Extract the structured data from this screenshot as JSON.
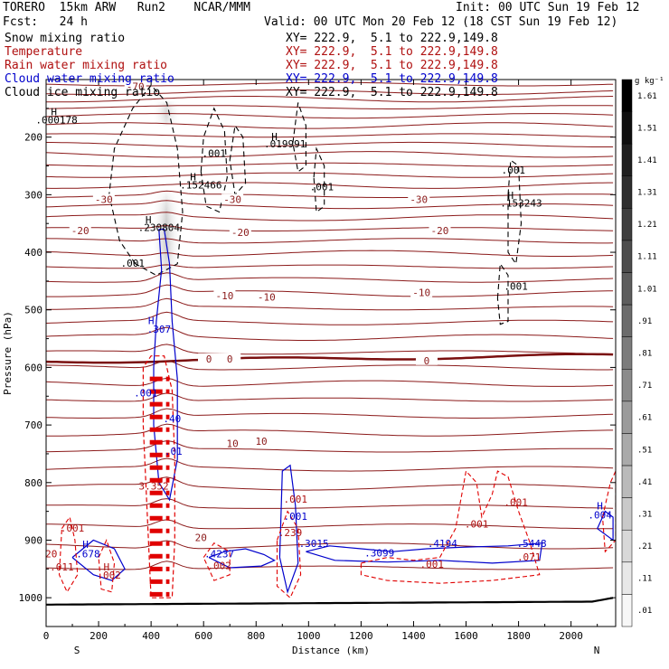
{
  "header": {
    "model": "TORERO  15km ARW   Run2    NCAR/MMM",
    "init": "Init: 00 UTC Sun 19 Feb 12",
    "fcst": "Fcst:   24 h",
    "valid": "Valid: 00 UTC Mon 20 Feb 12 (18 CST Sun 19 Feb 12)"
  },
  "legend": [
    {
      "label": "Snow mixing ratio",
      "xy": "XY= 222.9,  5.1 to 222.9,149.8",
      "color": "#000000"
    },
    {
      "label": "Temperature",
      "xy": "XY= 222.9,  5.1 to 222.9,149.8",
      "color": "#b01010"
    },
    {
      "label": "Rain water mixing ratio",
      "xy": "XY= 222.9,  5.1 to 222.9,149.8",
      "color": "#b01010"
    },
    {
      "label": "Cloud water mixing ratio",
      "xy": "XY= 222.9,  5.1 to 222.9,149.8",
      "color": "#0000cc"
    },
    {
      "label": "Cloud ice mixing ratio",
      "xy": "XY= 222.9,  5.1 to 222.9,149.8",
      "color": "#000000"
    }
  ],
  "chart_data": {
    "type": "cross-section",
    "xlabel": "Distance (km)",
    "ylabel": "Pressure (hPa)",
    "xlim": [
      0,
      2170
    ],
    "ylim": [
      1050,
      100
    ],
    "x_ticks": [
      "0",
      "200",
      "400",
      "600",
      "800",
      "1000",
      "1200",
      "1400",
      "1600",
      "1800",
      "2000"
    ],
    "y_ticks": [
      "200",
      "300",
      "400",
      "500",
      "600",
      "700",
      "800",
      "900",
      "1000"
    ],
    "end_labels": {
      "left": "S",
      "right": "N"
    },
    "colorbar": {
      "unit": "g kg⁻¹",
      "levels": [
        "1.61",
        "1.51",
        "1.41",
        "1.31",
        "1.21",
        "1.11",
        "1.01",
        ".91",
        ".81",
        ".71",
        ".61",
        ".51",
        ".41",
        ".31",
        ".21",
        ".11",
        ".01"
      ]
    },
    "temperature_isotherms": [
      {
        "label": "-70",
        "p": 112
      },
      {
        "label": "-30",
        "p": 308
      },
      {
        "label": "-20",
        "p": 362
      },
      {
        "label": "-10",
        "p": 473
      },
      {
        "label": "0",
        "p": 585
      },
      {
        "label": "10",
        "p": 728
      },
      {
        "label": "20",
        "p": 892
      }
    ],
    "contour_labels": [
      {
        "text": "H",
        "x": 30,
        "p": 162,
        "color": "#000000"
      },
      {
        "text": ".000178",
        "x": 40,
        "p": 176,
        "color": "#000000"
      },
      {
        "text": "H",
        "x": 870,
        "p": 205,
        "color": "#000000"
      },
      {
        "text": ".019991",
        "x": 910,
        "p": 218,
        "color": "#000000"
      },
      {
        "text": ".001",
        "x": 640,
        "p": 234,
        "color": "#000000"
      },
      {
        "text": ".001",
        "x": 1780,
        "p": 263,
        "color": "#000000"
      },
      {
        "text": "H",
        "x": 1770,
        "p": 307,
        "color": "#000000"
      },
      {
        "text": ".153243",
        "x": 1810,
        "p": 321,
        "color": "#000000"
      },
      {
        "text": "H",
        "x": 560,
        "p": 275,
        "color": "#000000"
      },
      {
        "text": ".152466",
        "x": 590,
        "p": 289,
        "color": "#000000"
      },
      {
        "text": ".001",
        "x": 1050,
        "p": 292,
        "color": "#000000"
      },
      {
        "text": "H",
        "x": 390,
        "p": 350,
        "color": "#000000"
      },
      {
        "text": ".230804",
        "x": 430,
        "p": 363,
        "color": "#000000"
      },
      {
        "text": ".001",
        "x": 330,
        "p": 425,
        "color": "#000000"
      },
      {
        "text": ".001",
        "x": 1790,
        "p": 465,
        "color": "#000000"
      },
      {
        "text": "H",
        "x": 400,
        "p": 525,
        "color": "#0000cc"
      },
      {
        "text": ".307",
        "x": 430,
        "p": 540,
        "color": "#0000cc"
      },
      {
        "text": ".001",
        "x": 380,
        "p": 650,
        "color": "#0000cc"
      },
      {
        "text": ".40",
        "x": 480,
        "p": 695,
        "color": "#0000cc"
      },
      {
        "text": ".01",
        "x": 485,
        "p": 752,
        "color": "#0000cc"
      },
      {
        "text": "3.352",
        "x": 410,
        "p": 812,
        "color": "#b01010"
      },
      {
        "text": ".001",
        "x": 950,
        "p": 835,
        "color": "#b01010"
      },
      {
        "text": ".001",
        "x": 950,
        "p": 865,
        "color": "#0000cc"
      },
      {
        "text": ".239",
        "x": 930,
        "p": 893,
        "color": "#b01010"
      },
      {
        "text": ".001",
        "x": 1640,
        "p": 878,
        "color": "#b01010"
      },
      {
        "text": ".001",
        "x": 1790,
        "p": 840,
        "color": "#b01010"
      },
      {
        "text": ".001",
        "x": 100,
        "p": 885,
        "color": "#b01010"
      },
      {
        "text": "20",
        "x": 20,
        "p": 930,
        "color": "#b01010"
      },
      {
        "text": ".011",
        "x": 60,
        "p": 953,
        "color": "#b01010"
      },
      {
        "text": "H",
        "x": 150,
        "p": 913,
        "color": "#0000cc"
      },
      {
        "text": ".678",
        "x": 160,
        "p": 930,
        "color": "#0000cc"
      },
      {
        "text": "H",
        "x": 230,
        "p": 953,
        "color": "#b01010"
      },
      {
        "text": ".002",
        "x": 240,
        "p": 967,
        "color": "#b01010"
      },
      {
        "text": ".4237",
        "x": 660,
        "p": 930,
        "color": "#0000cc"
      },
      {
        "text": ".002",
        "x": 660,
        "p": 950,
        "color": "#b01010"
      },
      {
        "text": ".3015",
        "x": 1020,
        "p": 912,
        "color": "#0000cc"
      },
      {
        "text": ".3099",
        "x": 1270,
        "p": 928,
        "color": "#0000cc"
      },
      {
        "text": ".4194",
        "x": 1510,
        "p": 912,
        "color": "#0000cc"
      },
      {
        "text": ".5448",
        "x": 1850,
        "p": 912,
        "color": "#0000cc"
      },
      {
        "text": ".001",
        "x": 1470,
        "p": 948,
        "color": "#b01010"
      },
      {
        "text": ".071",
        "x": 1840,
        "p": 935,
        "color": "#b01010"
      },
      {
        "text": "H",
        "x": 2110,
        "p": 847,
        "color": "#0000cc"
      },
      {
        "text": ".004",
        "x": 2110,
        "p": 862,
        "color": "#0000cc"
      }
    ]
  },
  "colors": {
    "temperature": "#8b1a1a",
    "zero_isotherm": "#7a0f0f",
    "rain": "#e00000",
    "cloud_water": "#0000cc",
    "snow_ice": "#000000",
    "terrain": "#000000"
  }
}
